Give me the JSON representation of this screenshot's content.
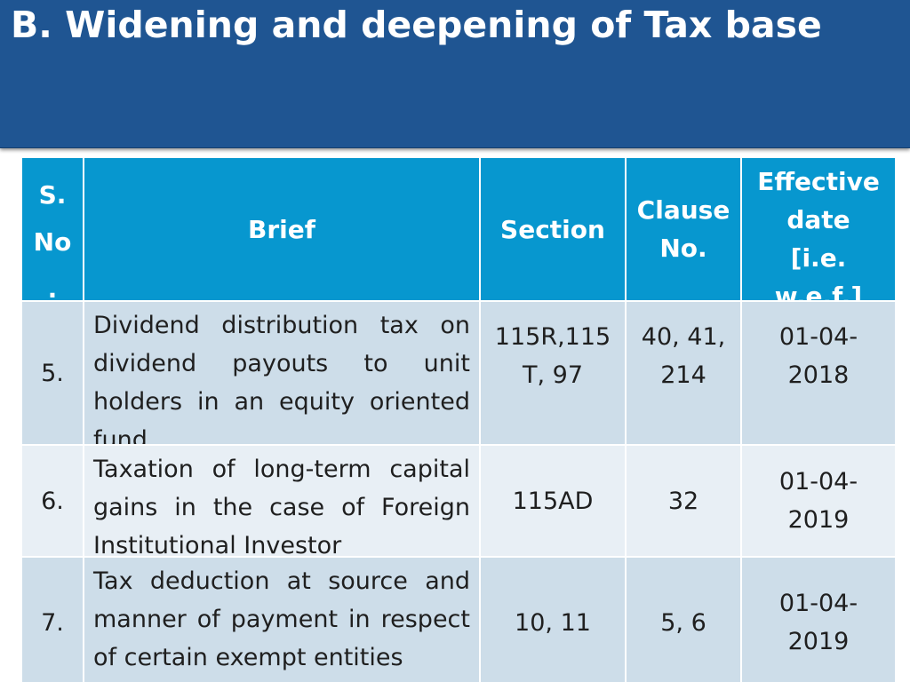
{
  "slide": {
    "title": "B. Widening and deepening of Tax base"
  },
  "table": {
    "headers": {
      "sno": [
        "S.",
        "No",
        "."
      ],
      "brief": "Brief",
      "section": "Section",
      "clause": [
        "Clause",
        "No."
      ],
      "effective": [
        "Effective",
        "date",
        "[i.e.",
        "w.e.f.]"
      ]
    },
    "rows": [
      {
        "sno": "5.",
        "brief": "Dividend distribution tax on dividend payouts to unit holders in an equity oriented fund",
        "section": [
          "115R,115",
          "T, 97"
        ],
        "clause": [
          "40, 41,",
          "214"
        ],
        "effective": [
          "01-04-",
          "2018"
        ]
      },
      {
        "sno": "6.",
        "brief": "Taxation of long-term capital gains in the case of Foreign Institutional Investor",
        "section": [
          "115AD"
        ],
        "clause": [
          "32"
        ],
        "effective": [
          "01-04-",
          "2019"
        ]
      },
      {
        "sno": "7.",
        "brief": "Tax deduction at source and manner of payment in respect of certain exempt entities",
        "section": [
          "10, 11"
        ],
        "clause": [
          "5, 6"
        ],
        "effective": [
          "01-04-",
          "2019"
        ]
      }
    ]
  }
}
